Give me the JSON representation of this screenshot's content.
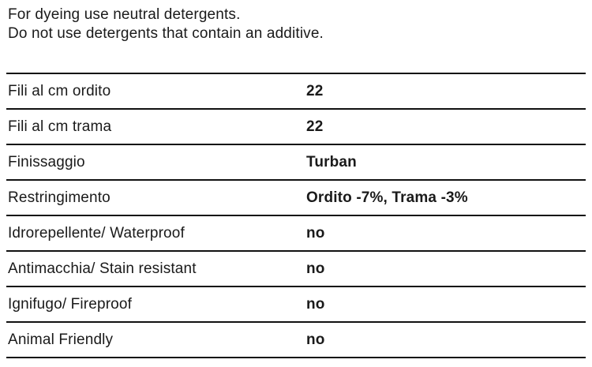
{
  "notes": {
    "line1": "For dyeing use neutral detergents.",
    "line2": "Do not use detergents that contain an additive."
  },
  "spec_table": {
    "rows": [
      {
        "label": "Fili al cm ordito",
        "value": "22"
      },
      {
        "label": "Fili al cm trama",
        "value": "22"
      },
      {
        "label": "Finissaggio",
        "value": "Turban"
      },
      {
        "label": "Restringimento",
        "value": "Ordito -7%, Trama -3%"
      },
      {
        "label": "Idrorepellente/ Waterproof",
        "value": "no"
      },
      {
        "label": "Antimacchia/ Stain resistant",
        "value": "no"
      },
      {
        "label": "Ignifugo/ Fireproof",
        "value": "no"
      },
      {
        "label": "Animal Friendly",
        "value": "no"
      }
    ]
  },
  "colors": {
    "text": "#1a1a1a",
    "rule": "#111111",
    "background": "#ffffff"
  }
}
